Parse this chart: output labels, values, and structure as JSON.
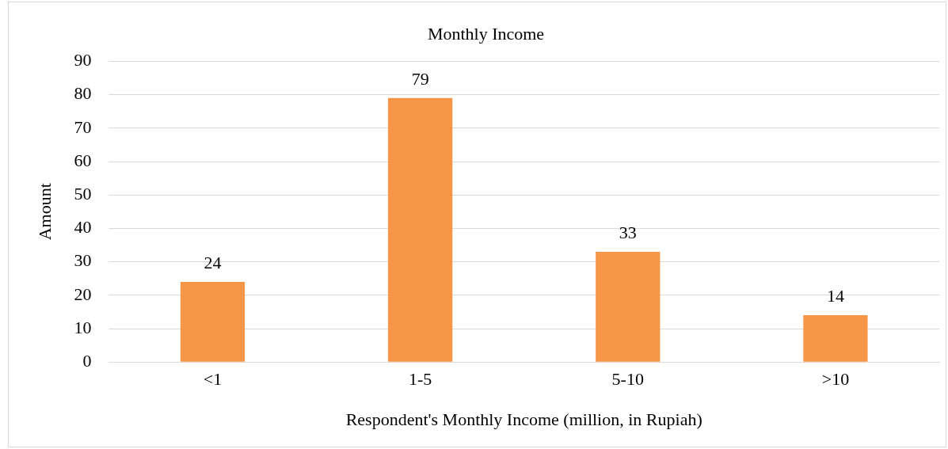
{
  "chart_data": {
    "type": "bar",
    "title": "Monthly Income",
    "xlabel": "Respondent's Monthly Income (million, in Rupiah)",
    "ylabel": "Amount",
    "categories": [
      "<1",
      "1-5",
      "5-10",
      ">10"
    ],
    "values": [
      24,
      79,
      33,
      14
    ],
    "color": "#f79646",
    "ylim": [
      0,
      90
    ],
    "yticks": [
      0,
      10,
      20,
      30,
      40,
      50,
      60,
      70,
      80,
      90
    ],
    "grid": "y",
    "data_labels": true,
    "legend": false
  }
}
